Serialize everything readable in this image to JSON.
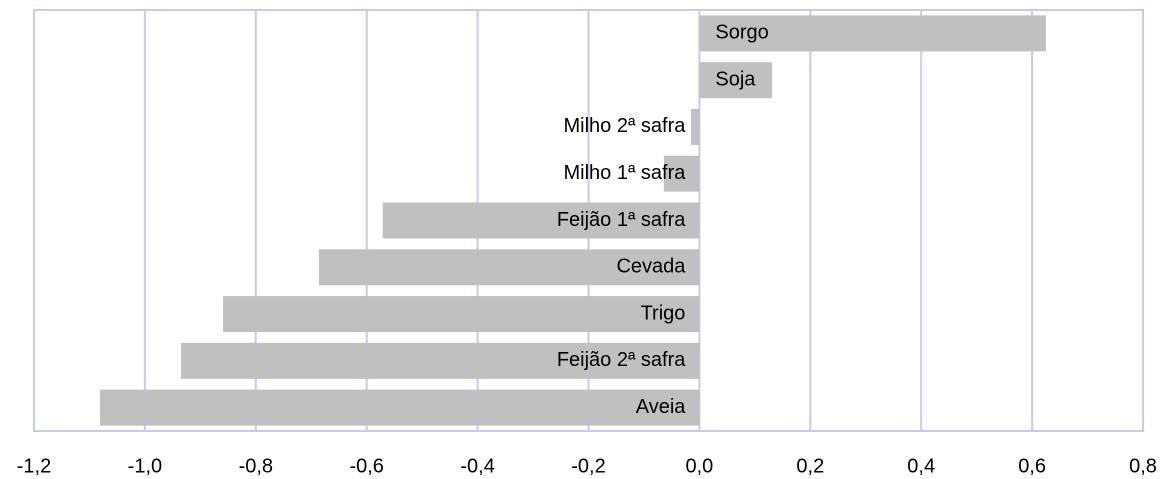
{
  "chart_data": {
    "type": "barh",
    "categories": [
      "Sorgo",
      "Soja",
      "Milho 2ª safra",
      "Milho 1ª safra",
      "Feijão 1ª safra",
      "Cevada",
      "Trigo",
      "Feijão 2ª safra",
      "Aveia"
    ],
    "values": [
      0.625,
      0.131,
      -0.015,
      -0.064,
      -0.571,
      -0.686,
      -0.859,
      -0.935,
      -1.081
    ],
    "color": "#c0c0c0",
    "xlim": [
      -1.2,
      0.8
    ],
    "xticks": [
      {
        "value": -1.2,
        "label": "-1,2"
      },
      {
        "value": -1.0,
        "label": "-1,0"
      },
      {
        "value": -0.8,
        "label": "-0,8"
      },
      {
        "value": -0.6,
        "label": "-0,6"
      },
      {
        "value": -0.4,
        "label": "-0,4"
      },
      {
        "value": -0.2,
        "label": "-0,2"
      },
      {
        "value": 0,
        "label": "0,0"
      },
      {
        "value": 0.2,
        "label": "0,2"
      },
      {
        "value": 0.4,
        "label": "0,4"
      },
      {
        "value": 0.6,
        "label": "0,6"
      },
      {
        "value": 0.8,
        "label": "0,8"
      }
    ],
    "grid": true
  }
}
